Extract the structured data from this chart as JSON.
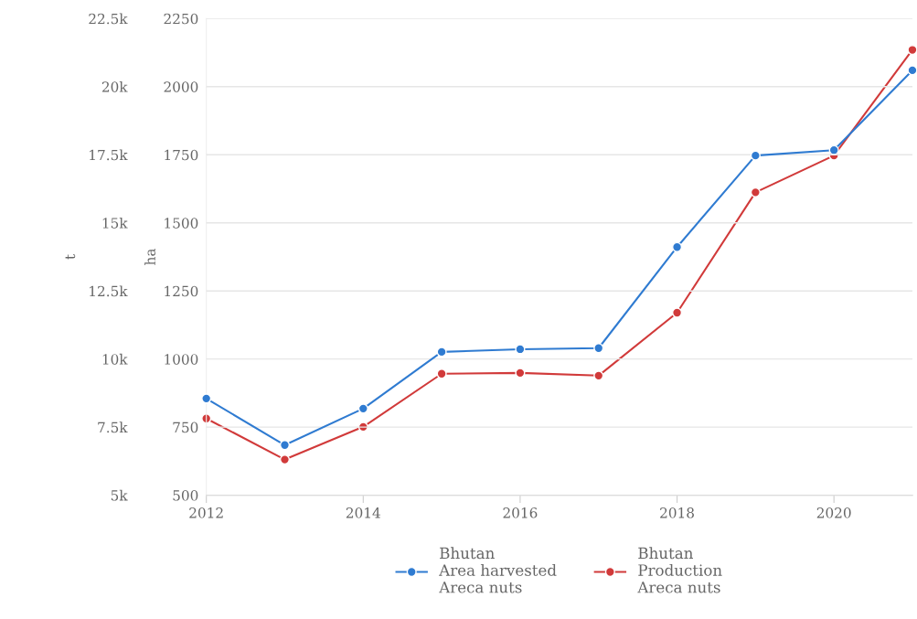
{
  "chart_data": {
    "type": "line",
    "x": [
      2012,
      2013,
      2014,
      2015,
      2016,
      2017,
      2018,
      2019,
      2020,
      2021
    ],
    "series": [
      {
        "name": "Bhutan\nArea harvested\nAreca nuts",
        "color": "#2f7bd1",
        "axis": "y2",
        "values": [
          855,
          684,
          818,
          1026,
          1036,
          1040,
          1411,
          1747,
          1767,
          2060
        ]
      },
      {
        "name": "Bhutan\nProduction\nAreca nuts",
        "color": "#d13a3a",
        "values": [
          7815,
          6310,
          7510,
          9460,
          9490,
          9390,
          11700,
          16120,
          17470,
          21350
        ]
      }
    ],
    "ylabel": "t",
    "y2label": "ha",
    "xlim": [
      2012,
      2021
    ],
    "xticks": [
      2012,
      2014,
      2016,
      2018,
      2020
    ],
    "ylim": [
      5000,
      22500
    ],
    "yticks": [
      {
        "value": 5000,
        "label": "5k"
      },
      {
        "value": 7500,
        "label": "7.5k"
      },
      {
        "value": 10000,
        "label": "10k"
      },
      {
        "value": 12500,
        "label": "12.5k"
      },
      {
        "value": 15000,
        "label": "15k"
      },
      {
        "value": 17500,
        "label": "17.5k"
      },
      {
        "value": 20000,
        "label": "20k"
      },
      {
        "value": 22500,
        "label": "22.5k"
      }
    ],
    "y2lim": [
      500,
      2250
    ],
    "y2ticks": [
      500,
      750,
      1000,
      1250,
      1500,
      1750,
      2000,
      2250
    ],
    "grid": "y",
    "legend": "bottom",
    "marker": "circle",
    "line_style": "solid"
  }
}
